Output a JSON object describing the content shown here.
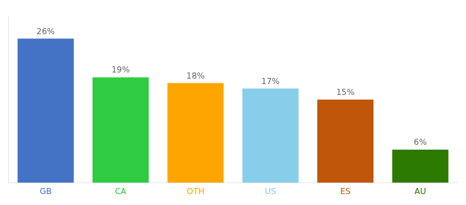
{
  "chart_data": {
    "type": "bar",
    "categories": [
      "GB",
      "CA",
      "OTH",
      "US",
      "ES",
      "AU"
    ],
    "values": [
      26,
      19,
      18,
      17,
      15,
      6
    ],
    "value_labels": [
      "26%",
      "19%",
      "18%",
      "17%",
      "15%",
      "6%"
    ],
    "colors": [
      "#4472C4",
      "#2ECC40",
      "#FFA500",
      "#87CEEB",
      "#C0560A",
      "#2D7A00"
    ],
    "ylim": [
      0,
      30
    ],
    "grid": false,
    "data_labels": true,
    "tick_labels": "x"
  }
}
